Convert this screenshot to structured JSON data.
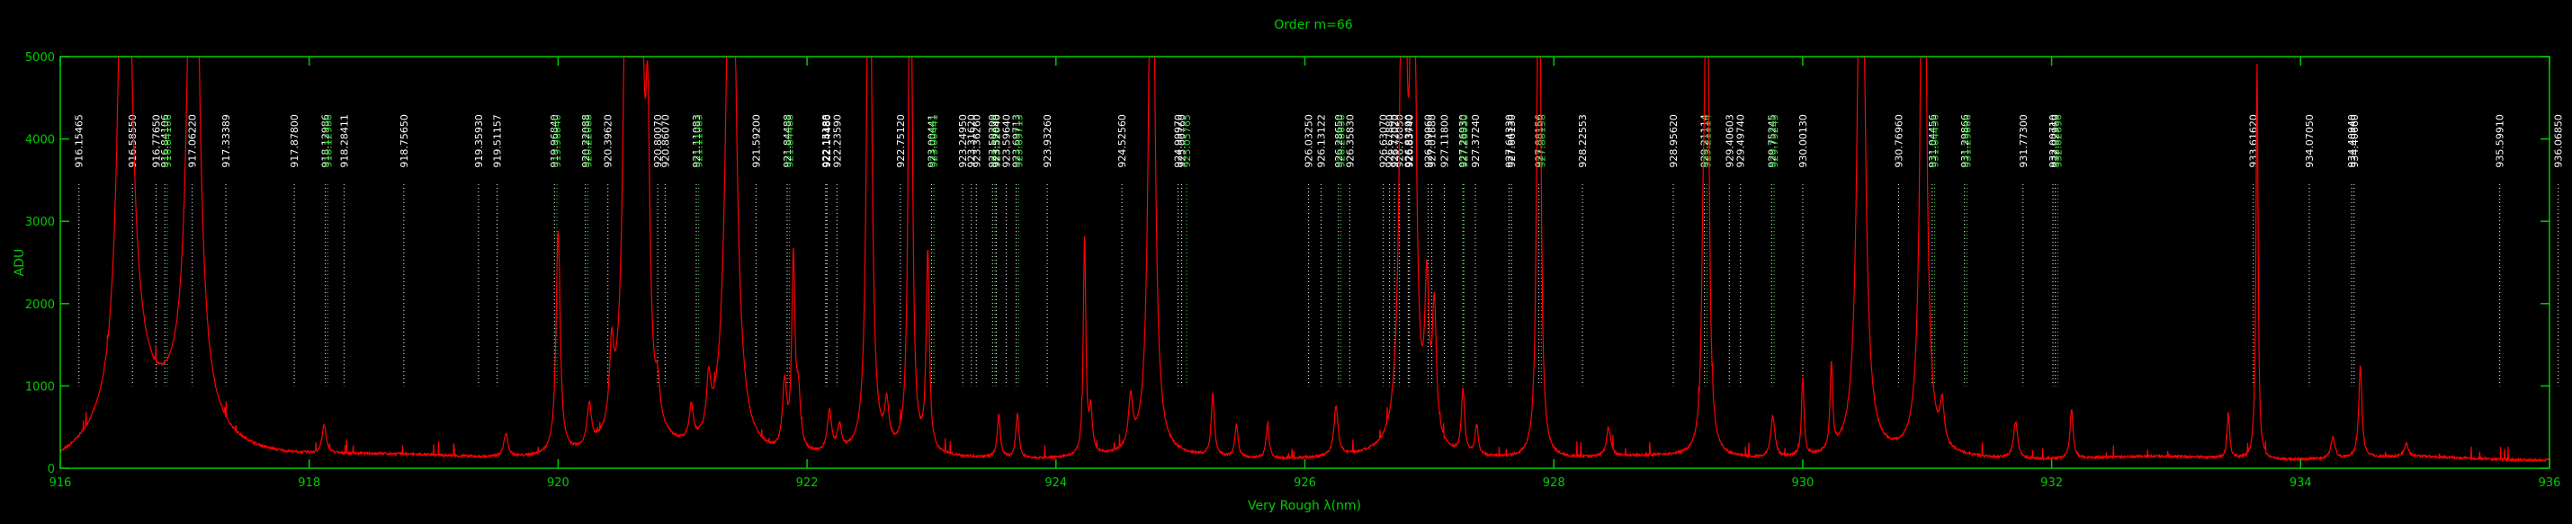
{
  "chart_data": {
    "type": "line",
    "title": "Order m=66",
    "xlabel": "Very Rough λ(nm)",
    "ylabel": "ADU",
    "xlim": [
      916,
      936
    ],
    "ylim": [
      0,
      5000
    ],
    "x_ticks": [
      916,
      918,
      920,
      922,
      924,
      926,
      928,
      930,
      932,
      934,
      936
    ],
    "y_ticks": [
      0,
      1000,
      2000,
      3000,
      4000,
      5000
    ],
    "grid": false,
    "colors": {
      "background": "#000000",
      "axes": "#00cc00",
      "spectrum": "#ff0000",
      "line_label_white": "#ffffff",
      "line_label_green": "#33dd33"
    },
    "series": [
      {
        "kind": "spectrum",
        "baseline": 120,
        "peaks": [
          [
            916.52,
            9000,
            0.05
          ],
          [
            916.6,
            600,
            0.2
          ],
          [
            917.07,
            9000,
            0.045
          ],
          [
            917.0,
            500,
            0.25
          ],
          [
            918.12,
            340,
            0.02
          ],
          [
            919.58,
            280,
            0.02
          ],
          [
            920.0,
            2700,
            0.02
          ],
          [
            920.25,
            500,
            0.02
          ],
          [
            920.43,
            900,
            0.02
          ],
          [
            920.56,
            9000,
            0.03
          ],
          [
            920.65,
            9000,
            0.03
          ],
          [
            920.72,
            3000,
            0.02
          ],
          [
            920.8,
            400,
            0.02
          ],
          [
            921.07,
            420,
            0.02
          ],
          [
            921.21,
            620,
            0.02
          ],
          [
            921.39,
            9000,
            0.04
          ],
          [
            921.82,
            800,
            0.02
          ],
          [
            921.89,
            2300,
            0.015
          ],
          [
            921.93,
            650,
            0.02
          ],
          [
            922.18,
            500,
            0.02
          ],
          [
            922.26,
            300,
            0.02
          ],
          [
            922.5,
            9000,
            0.02
          ],
          [
            922.64,
            500,
            0.02
          ],
          [
            922.83,
            9000,
            0.015
          ],
          [
            922.97,
            2400,
            0.015
          ],
          [
            923.54,
            520,
            0.015
          ],
          [
            923.69,
            530,
            0.015
          ],
          [
            924.23,
            2650,
            0.012
          ],
          [
            924.28,
            520,
            0.015
          ],
          [
            924.6,
            600,
            0.02
          ],
          [
            924.77,
            9000,
            0.025
          ],
          [
            925.26,
            750,
            0.015
          ],
          [
            925.45,
            400,
            0.015
          ],
          [
            925.7,
            400,
            0.015
          ],
          [
            926.25,
            600,
            0.02
          ],
          [
            926.79,
            9000,
            0.025
          ],
          [
            926.87,
            9000,
            0.02
          ],
          [
            926.98,
            1800,
            0.02
          ],
          [
            927.04,
            1600,
            0.02
          ],
          [
            927.27,
            780,
            0.015
          ],
          [
            927.38,
            350,
            0.015
          ],
          [
            927.88,
            9000,
            0.015
          ],
          [
            928.44,
            350,
            0.02
          ],
          [
            929.2,
            1650,
            0.015
          ],
          [
            929.23,
            9000,
            0.015
          ],
          [
            929.76,
            500,
            0.02
          ],
          [
            930.0,
            950,
            0.012
          ],
          [
            930.23,
            1050,
            0.012
          ],
          [
            930.47,
            9000,
            0.03
          ],
          [
            930.97,
            9000,
            0.025
          ],
          [
            931.12,
            500,
            0.02
          ],
          [
            931.71,
            450,
            0.02
          ],
          [
            932.16,
            600,
            0.015
          ],
          [
            933.42,
            550,
            0.012
          ],
          [
            933.65,
            4800,
            0.01
          ],
          [
            934.26,
            250,
            0.02
          ],
          [
            934.48,
            1120,
            0.015
          ],
          [
            934.85,
            150,
            0.02
          ]
        ]
      }
    ],
    "line_ids": [
      {
        "label": "916.15465",
        "x": 916.15,
        "color": "white"
      },
      {
        "label": "916.58550",
        "x": 916.58,
        "color": "white"
      },
      {
        "label": "916.77650",
        "x": 916.77,
        "color": "white"
      },
      {
        "label": "916.84106",
        "x": 916.84,
        "color": "white"
      },
      {
        "label": "916.84106",
        "x": 916.86,
        "color": "green"
      },
      {
        "label": "917.06220",
        "x": 917.06,
        "color": "white"
      },
      {
        "label": "917.33389",
        "x": 917.33,
        "color": "white"
      },
      {
        "label": "917.87800",
        "x": 917.88,
        "color": "white"
      },
      {
        "label": "918.12986",
        "x": 918.13,
        "color": "white"
      },
      {
        "label": "918.12986",
        "x": 918.15,
        "color": "green"
      },
      {
        "label": "918.28411",
        "x": 918.28,
        "color": "white"
      },
      {
        "label": "918.75650",
        "x": 918.76,
        "color": "white"
      },
      {
        "label": "919.35930",
        "x": 919.36,
        "color": "white"
      },
      {
        "label": "919.51157",
        "x": 919.51,
        "color": "white"
      },
      {
        "label": "919.96840",
        "x": 919.97,
        "color": "white"
      },
      {
        "label": "919.96840",
        "x": 919.99,
        "color": "green"
      },
      {
        "label": "920.22088",
        "x": 920.22,
        "color": "white"
      },
      {
        "label": "920.22088",
        "x": 920.24,
        "color": "green"
      },
      {
        "label": "920.39620",
        "x": 920.4,
        "color": "white"
      },
      {
        "label": "920.80070",
        "x": 920.8,
        "color": "white"
      },
      {
        "label": "920.86070",
        "x": 920.86,
        "color": "white"
      },
      {
        "label": "921.11083",
        "x": 921.11,
        "color": "white"
      },
      {
        "label": "921.11083",
        "x": 921.13,
        "color": "green"
      },
      {
        "label": "921.59200",
        "x": 921.59,
        "color": "white"
      },
      {
        "label": "921.84488",
        "x": 921.84,
        "color": "white"
      },
      {
        "label": "921.84488",
        "x": 921.86,
        "color": "green"
      },
      {
        "label": "922.15188",
        "x": 922.15,
        "color": "white"
      },
      {
        "label": "922.14480",
        "x": 922.16,
        "color": "white"
      },
      {
        "label": "922.23590",
        "x": 922.24,
        "color": "white"
      },
      {
        "label": "922.75120",
        "x": 922.75,
        "color": "white"
      },
      {
        "label": "923.00441",
        "x": 923.0,
        "color": "white"
      },
      {
        "label": "923.00441",
        "x": 923.02,
        "color": "green"
      },
      {
        "label": "923.24950",
        "x": 923.25,
        "color": "white"
      },
      {
        "label": "923.31620",
        "x": 923.32,
        "color": "white"
      },
      {
        "label": "923.36260",
        "x": 923.36,
        "color": "white"
      },
      {
        "label": "923.50200",
        "x": 923.49,
        "color": "white"
      },
      {
        "label": "923.50200",
        "x": 923.51,
        "color": "green"
      },
      {
        "label": "923.52040",
        "x": 923.52,
        "color": "white"
      },
      {
        "label": "923.59640",
        "x": 923.6,
        "color": "white"
      },
      {
        "label": "923.69713",
        "x": 923.68,
        "color": "white"
      },
      {
        "label": "923.69713",
        "x": 923.7,
        "color": "green"
      },
      {
        "label": "923.93260",
        "x": 923.93,
        "color": "white"
      },
      {
        "label": "924.52560",
        "x": 924.53,
        "color": "white"
      },
      {
        "label": "924.99970",
        "x": 924.98,
        "color": "white"
      },
      {
        "label": "925.00760",
        "x": 925.01,
        "color": "white"
      },
      {
        "label": "925.05765",
        "x": 925.05,
        "color": "green"
      },
      {
        "label": "926.03250",
        "x": 926.03,
        "color": "white"
      },
      {
        "label": "926.13122",
        "x": 926.13,
        "color": "white"
      },
      {
        "label": "926.28650",
        "x": 926.27,
        "color": "white"
      },
      {
        "label": "926.28650",
        "x": 926.29,
        "color": "green"
      },
      {
        "label": "926.35830",
        "x": 926.36,
        "color": "white"
      },
      {
        "label": "926.63070",
        "x": 926.63,
        "color": "white"
      },
      {
        "label": "926.67880",
        "x": 926.68,
        "color": "white"
      },
      {
        "label": "926.72020",
        "x": 926.72,
        "color": "white"
      },
      {
        "label": "926.76050",
        "x": 926.76,
        "color": "white"
      },
      {
        "label": "926.83490",
        "x": 926.83,
        "color": "white"
      },
      {
        "label": "926.83740",
        "x": 926.84,
        "color": "white"
      },
      {
        "label": "926.99960",
        "x": 926.99,
        "color": "white"
      },
      {
        "label": "927.01880",
        "x": 927.02,
        "color": "white"
      },
      {
        "label": "927.11800",
        "x": 927.12,
        "color": "white"
      },
      {
        "label": "927.26930",
        "x": 927.27,
        "color": "white"
      },
      {
        "label": "927.28030",
        "x": 927.28,
        "color": "green"
      },
      {
        "label": "927.37240",
        "x": 927.37,
        "color": "white"
      },
      {
        "label": "927.64330",
        "x": 927.64,
        "color": "white"
      },
      {
        "label": "927.66130",
        "x": 927.66,
        "color": "white"
      },
      {
        "label": "927.88156",
        "x": 927.88,
        "color": "white"
      },
      {
        "label": "927.88156",
        "x": 927.9,
        "color": "green"
      },
      {
        "label": "928.22553",
        "x": 928.23,
        "color": "white"
      },
      {
        "label": "928.95620",
        "x": 928.96,
        "color": "white"
      },
      {
        "label": "929.21114",
        "x": 929.21,
        "color": "white"
      },
      {
        "label": "929.21114",
        "x": 929.23,
        "color": "green"
      },
      {
        "label": "929.40603",
        "x": 929.41,
        "color": "white"
      },
      {
        "label": "929.49740",
        "x": 929.5,
        "color": "white"
      },
      {
        "label": "929.75245",
        "x": 929.75,
        "color": "white"
      },
      {
        "label": "929.75245",
        "x": 929.77,
        "color": "green"
      },
      {
        "label": "930.00130",
        "x": 930.0,
        "color": "white"
      },
      {
        "label": "930.76960",
        "x": 930.77,
        "color": "white"
      },
      {
        "label": "931.04456",
        "x": 931.04,
        "color": "white"
      },
      {
        "label": "931.04456",
        "x": 931.06,
        "color": "green"
      },
      {
        "label": "931.29866",
        "x": 931.3,
        "color": "white"
      },
      {
        "label": "931.29866",
        "x": 931.32,
        "color": "green"
      },
      {
        "label": "931.77300",
        "x": 931.77,
        "color": "white"
      },
      {
        "label": "932.00710",
        "x": 932.01,
        "color": "white"
      },
      {
        "label": "932.02960",
        "x": 932.03,
        "color": "white"
      },
      {
        "label": "932.02696",
        "x": 932.05,
        "color": "green"
      },
      {
        "label": "933.61620",
        "x": 933.62,
        "color": "white"
      },
      {
        "label": "934.07050",
        "x": 934.07,
        "color": "white"
      },
      {
        "label": "934.40940",
        "x": 934.41,
        "color": "white"
      },
      {
        "label": "934.40660",
        "x": 934.43,
        "color": "white"
      },
      {
        "label": "935.59910",
        "x": 935.6,
        "color": "white"
      },
      {
        "label": "936.06850",
        "x": 936.07,
        "color": "white"
      }
    ]
  }
}
